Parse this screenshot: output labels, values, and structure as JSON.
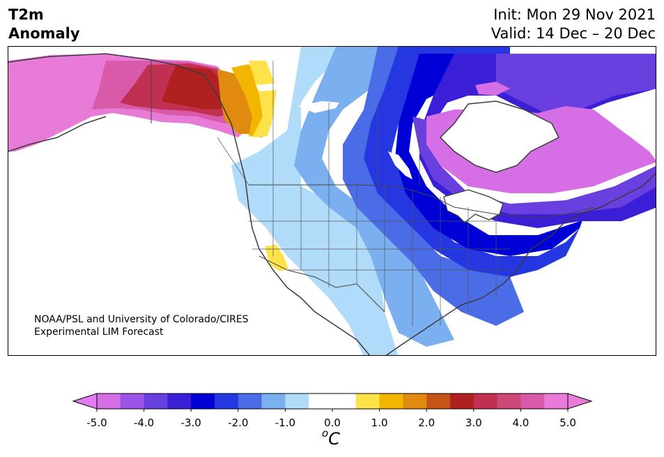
{
  "header": {
    "title_line1": "T2m",
    "title_line2": "Anomaly",
    "init": "Init: Mon 29 Nov 2021",
    "valid": "Valid: 14 Dec – 20 Dec"
  },
  "credit": {
    "line1": "NOAA/PSL and University of Colorado/CIRES",
    "line2": "Experimental LIM Forecast"
  },
  "colorbar": {
    "unit_base": "C",
    "unit_sup": "o",
    "ticks": [
      "-5.0",
      "-4.0",
      "-3.0",
      "-2.0",
      "-1.0",
      "0.0",
      "1.0",
      "2.0",
      "3.0",
      "4.0",
      "5.0"
    ],
    "colors": [
      "#d66ee6",
      "#9b55e6",
      "#6a3fe0",
      "#3a1fd6",
      "#0000d6",
      "#2437e0",
      "#4a6ce6",
      "#7ab0f0",
      "#b0dcfa",
      "#ffffff",
      "#ffffff",
      "#fde24a",
      "#f2b500",
      "#e08a10",
      "#c65418",
      "#b02020",
      "#c03050",
      "#cc4878",
      "#d85aa8",
      "#e87ad8"
    ],
    "min_color": "#e27af0",
    "max_color": "#e87ad8"
  },
  "map_colors": {
    "land_neutral": "#ffffff",
    "coast": "#3a3a3a",
    "border": "#444444"
  }
}
